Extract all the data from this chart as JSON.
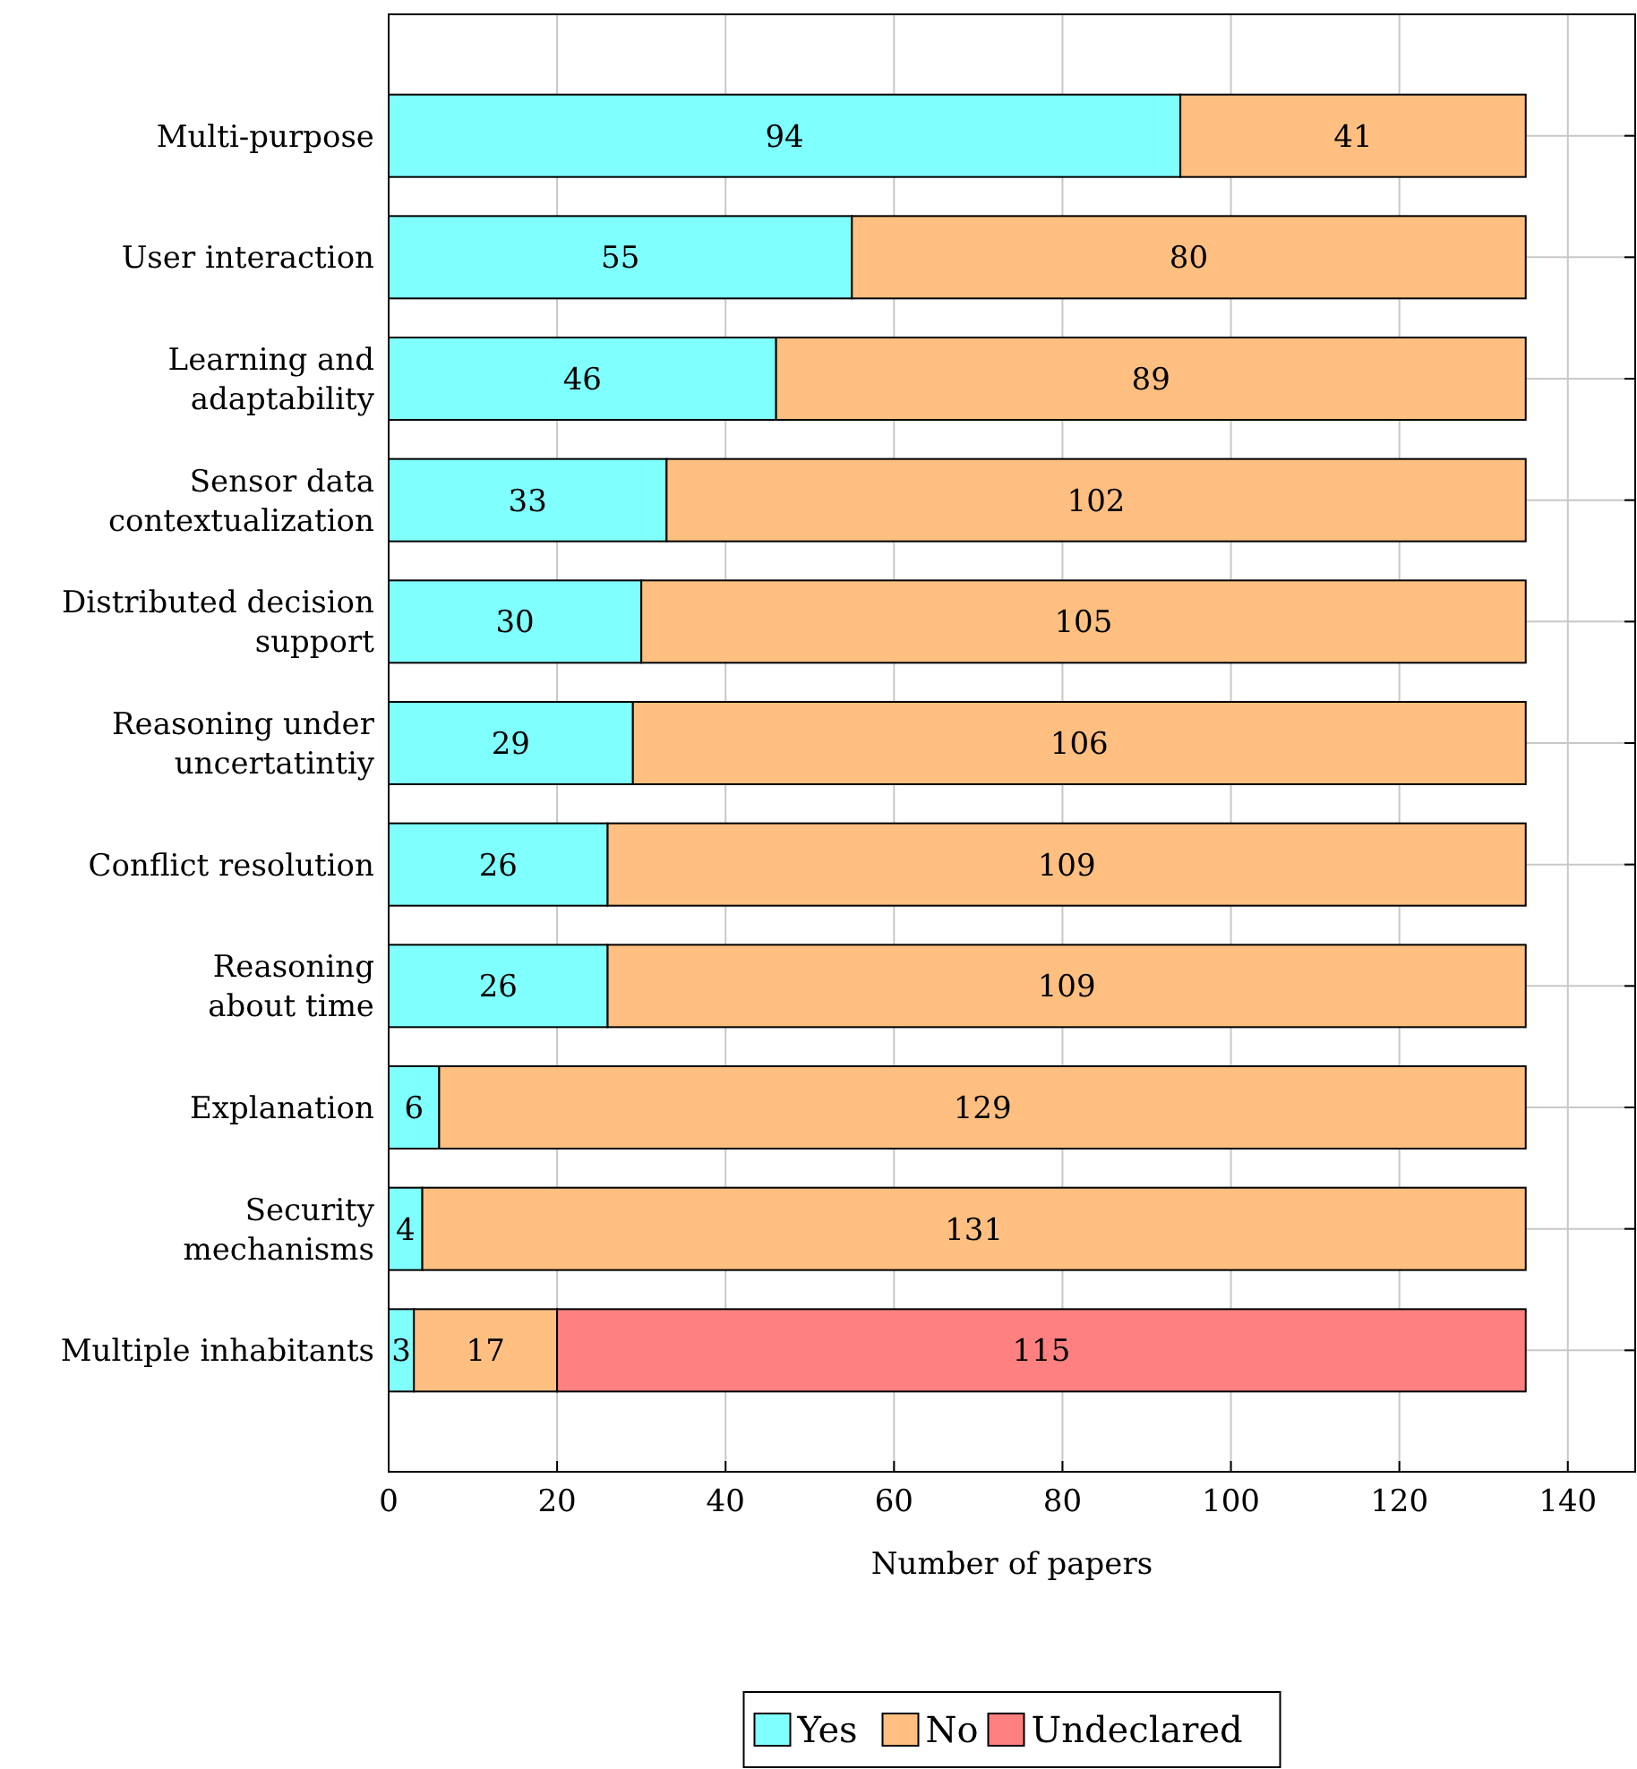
{
  "chart_data": {
    "type": "bar",
    "orientation": "horizontal",
    "stacked": true,
    "xlabel": "Number of papers",
    "categories": [
      "Multi-purpose",
      "User interaction",
      "Learning and\nadaptability",
      "Sensor data\ncontextualization",
      "Distributed decision\nsupport",
      "Reasoning under\nuncertatintiy",
      "Conflict resolution",
      "Reasoning\nabout time",
      "Explanation",
      "Security\nmechanisms",
      "Multiple inhabitants"
    ],
    "series": [
      {
        "name": "Yes",
        "color": "#80ffff",
        "values": [
          94,
          55,
          46,
          33,
          30,
          29,
          26,
          26,
          6,
          4,
          3
        ]
      },
      {
        "name": "No",
        "color": "#ffbf80",
        "values": [
          41,
          80,
          89,
          102,
          105,
          106,
          109,
          109,
          129,
          131,
          17
        ]
      },
      {
        "name": "Undeclared",
        "color": "#ff8080",
        "values": [
          null,
          null,
          null,
          null,
          null,
          null,
          null,
          null,
          null,
          null,
          115
        ]
      }
    ],
    "xlim": [
      0,
      148
    ],
    "xticks": [
      0,
      20,
      40,
      60,
      80,
      100,
      120,
      140
    ],
    "grid": true,
    "legend": "bottom",
    "data_labels": true
  }
}
